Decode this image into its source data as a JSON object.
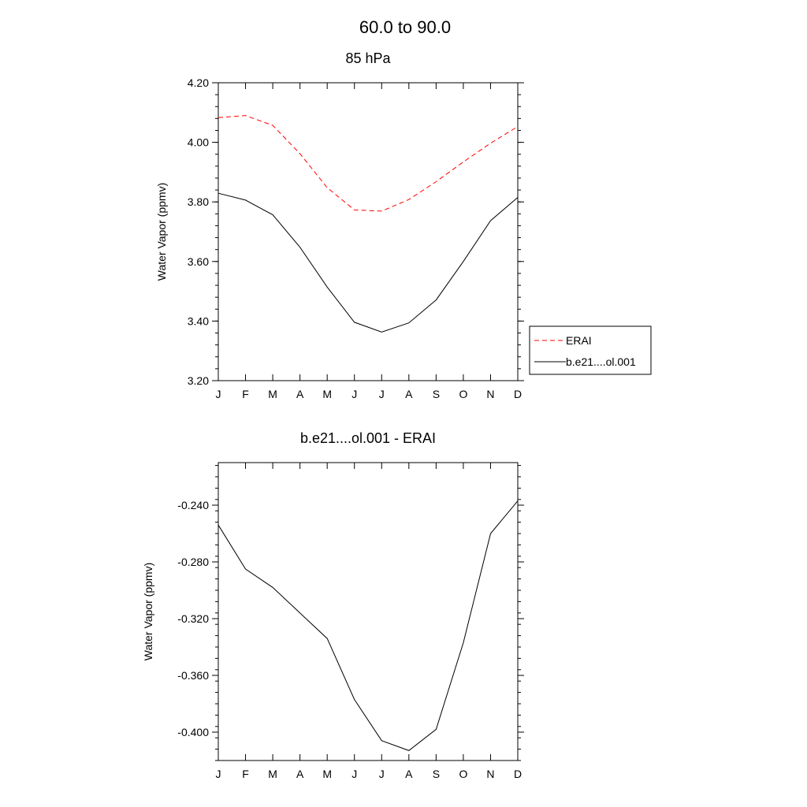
{
  "figure": {
    "title": "60.0 to  90.0"
  },
  "chart_data": [
    {
      "type": "line",
      "title": "85 hPa",
      "xlabel": "",
      "ylabel": "Water Vapor (ppmv)",
      "categories": [
        "J",
        "F",
        "M",
        "A",
        "M",
        "J",
        "J",
        "A",
        "S",
        "O",
        "N",
        "D"
      ],
      "ylim": [
        3.2,
        4.2
      ],
      "yticks": [
        "3.20",
        "3.40",
        "3.60",
        "3.80",
        "4.00",
        "4.20"
      ],
      "series": [
        {
          "name": "ERAI",
          "color": "#ff0000",
          "dashed": true,
          "values": [
            4.083,
            4.09,
            4.057,
            3.962,
            3.848,
            3.773,
            3.769,
            3.808,
            3.868,
            3.934,
            3.997,
            4.053
          ]
        },
        {
          "name": "b.e21....ol.001",
          "color": "#000000",
          "dashed": false,
          "values": [
            3.829,
            3.806,
            3.757,
            3.648,
            3.514,
            3.396,
            3.363,
            3.394,
            3.471,
            3.6,
            3.737,
            3.815
          ]
        }
      ],
      "legend": "outside-right",
      "grid": false
    },
    {
      "type": "line",
      "title": "b.e21....ol.001 - ERAI",
      "xlabel": "",
      "ylabel": "Water Vapor (ppmv)",
      "categories": [
        "J",
        "F",
        "M",
        "A",
        "M",
        "J",
        "J",
        "A",
        "S",
        "O",
        "N",
        "D"
      ],
      "ylim": [
        -0.42,
        -0.21
      ],
      "yticks": [
        "-0.400",
        "-0.360",
        "-0.320",
        "-0.280",
        "-0.240"
      ],
      "series": [
        {
          "color": "#000000",
          "dashed": false,
          "values": [
            -0.254,
            -0.285,
            -0.298,
            -0.316,
            -0.334,
            -0.377,
            -0.406,
            -0.413,
            -0.398,
            -0.337,
            -0.26,
            -0.237
          ]
        }
      ],
      "grid": false
    }
  ]
}
